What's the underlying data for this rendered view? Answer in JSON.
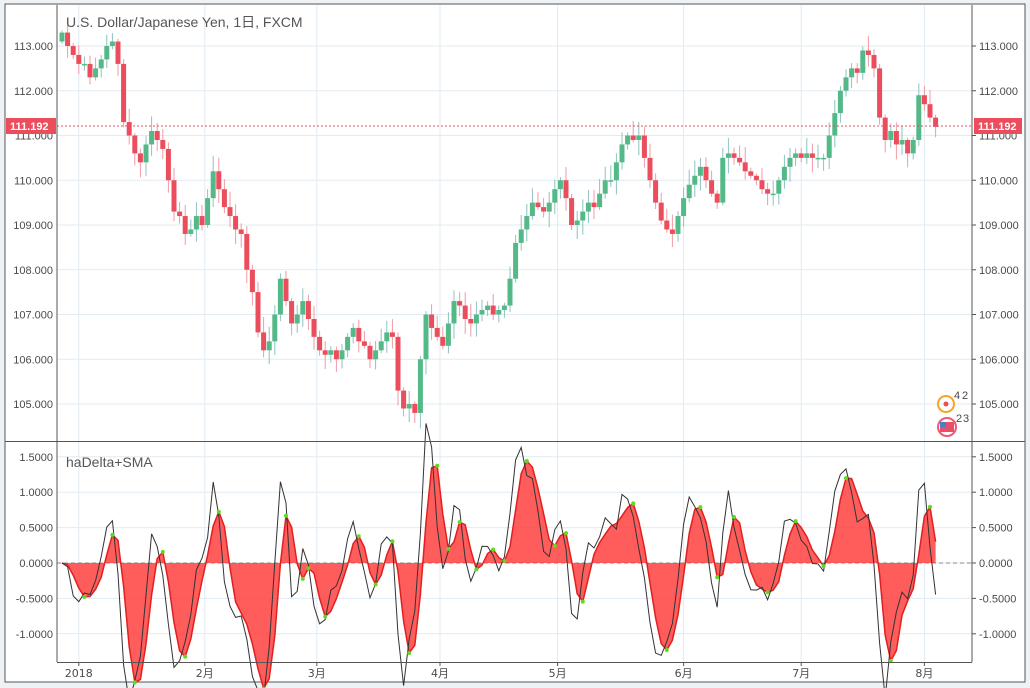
{
  "title": "U.S. Dollar/Japanese Yen, 1日, FXCM",
  "indicator_title": "haDelta+SMA",
  "last_price_label": "111.192",
  "badges": [
    "4",
    "2",
    "2",
    "3"
  ],
  "colors": {
    "up": "#53b987",
    "down": "#eb4d5c",
    "grid": "#e1ebf2",
    "sma_fill": "#ff4040",
    "dot": "#5ddc1a",
    "line": "#333333"
  },
  "chart_data": [
    {
      "type": "candlestick",
      "title": "U.S. Dollar/Japanese Yen, 1日, FXCM",
      "last_price": 111.192,
      "ylim": [
        104.2,
        113.9
      ],
      "yticks": [
        "113.000",
        "112.000",
        "111.000",
        "110.000",
        "109.000",
        "108.000",
        "107.000",
        "106.000",
        "105.000"
      ],
      "ytick_values": [
        113,
        112,
        111,
        110,
        109,
        108,
        107,
        106,
        105
      ],
      "xticks": [
        "2018",
        "2月",
        "3月",
        "4月",
        "5月",
        "6月",
        "7月",
        "8月"
      ],
      "xtick_index": [
        3,
        25.5,
        45.5,
        67.5,
        88.5,
        111,
        132,
        154
      ],
      "close": [
        113.3,
        113.0,
        112.8,
        112.6,
        112.6,
        112.3,
        112.5,
        112.7,
        113.0,
        113.1,
        112.6,
        111.3,
        111.0,
        110.6,
        110.4,
        110.8,
        111.1,
        110.9,
        110.7,
        110.0,
        109.3,
        109.2,
        108.8,
        108.9,
        109.2,
        109.0,
        109.6,
        110.2,
        109.8,
        109.4,
        109.2,
        108.9,
        108.8,
        108.0,
        107.5,
        106.6,
        106.2,
        106.4,
        107.0,
        107.8,
        107.3,
        106.8,
        107.0,
        107.3,
        106.9,
        106.5,
        106.2,
        106.1,
        106.2,
        106.0,
        106.2,
        106.5,
        106.7,
        106.4,
        106.3,
        106.0,
        106.2,
        106.4,
        106.6,
        106.5,
        105.3,
        104.9,
        105.0,
        104.8,
        106.0,
        107.0,
        106.7,
        106.5,
        106.3,
        106.8,
        107.3,
        107.2,
        106.9,
        106.8,
        107.0,
        107.1,
        107.2,
        107.0,
        107.1,
        107.2,
        107.8,
        108.6,
        108.9,
        109.2,
        109.5,
        109.4,
        109.3,
        109.5,
        109.8,
        110.0,
        109.6,
        109.0,
        109.1,
        109.3,
        109.5,
        109.4,
        109.7,
        110.0,
        110.0,
        110.4,
        110.8,
        111.0,
        110.9,
        111.0,
        110.5,
        110.0,
        109.5,
        109.1,
        108.9,
        108.8,
        109.2,
        109.6,
        109.9,
        110.1,
        110.3,
        110.0,
        109.7,
        109.5,
        110.5,
        110.6,
        110.5,
        110.4,
        110.2,
        110.1,
        110.0,
        109.8,
        109.7,
        109.7,
        110.0,
        110.3,
        110.5,
        110.6,
        110.5,
        110.6,
        110.5,
        110.5,
        110.5,
        111.0,
        111.5,
        112.0,
        112.3,
        112.5,
        112.4,
        112.9,
        112.8,
        112.5,
        111.4,
        110.9,
        111.1,
        110.8,
        110.9,
        110.6,
        110.9,
        111.9,
        111.7,
        111.4,
        111.192
      ],
      "first_open": 113.1
    },
    {
      "type": "line",
      "title": "haDelta+SMA",
      "series": [
        {
          "name": "haDelta"
        },
        {
          "name": "SMA",
          "period": 3
        }
      ],
      "ylim": [
        -1.35,
        1.6
      ],
      "yticks": [
        "1.5000",
        "1.0000",
        "0.5000",
        "0.0000",
        "-0.5000",
        "-1.0000"
      ],
      "ytick_values": [
        1.5,
        1.0,
        0.5,
        0,
        -0.5,
        -1.0
      ]
    }
  ]
}
